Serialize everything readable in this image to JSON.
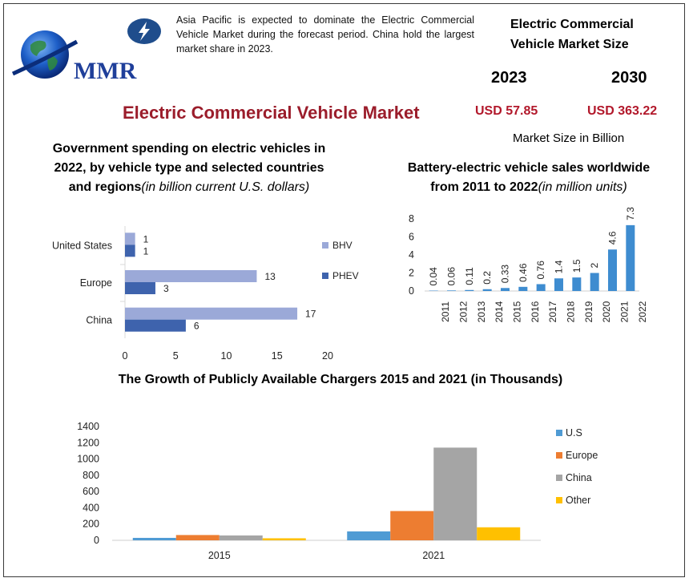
{
  "logo": {
    "text": "MMR"
  },
  "intro_text": "Asia Pacific is expected to dominate the Electric Commercial Vehicle Market during the forecast period. China hold the largest market share in 2023.",
  "market_size": {
    "heading_line1": "Electric Commercial",
    "heading_line2": "Vehicle Market Size",
    "year1": "2023",
    "year2": "2030",
    "value1": "USD 57.85",
    "value2": "USD 363.22",
    "unit_note": "Market Size in Billion"
  },
  "main_title": "Electric Commercial Vehicle Market",
  "colors": {
    "title_red": "#9b1d2b",
    "usd_red": "#b2182b",
    "bhv": "#9ba9d8",
    "phev": "#3e63ad",
    "ev_bar": "#3e8cd0",
    "us": "#4f9bd4",
    "europe": "#ed7d31",
    "china": "#a5a5a5",
    "other": "#ffc000"
  },
  "chart_data": [
    {
      "type": "bar",
      "orientation": "horizontal",
      "title_bold": "Government spending on electric vehicles in 2022, by vehicle type and selected countries and regions",
      "title_italic": "(in billion current U.S. dollars)",
      "categories": [
        "United States",
        "Europe",
        "China"
      ],
      "series": [
        {
          "name": "BHV",
          "values": [
            1,
            13,
            17
          ]
        },
        {
          "name": "PHEV",
          "values": [
            1,
            3,
            6
          ]
        }
      ],
      "xlim": [
        0,
        20
      ],
      "xticks": [
        "0",
        "5",
        "10",
        "15",
        "20"
      ],
      "legend": "right"
    },
    {
      "type": "bar",
      "title_bold": "Battery-electric vehicle sales worldwide from 2011 to 2022",
      "title_italic": "(in million units)",
      "categories": [
        "2011",
        "2012",
        "2013",
        "2014",
        "2015",
        "2016",
        "2017",
        "2018",
        "2019",
        "2020",
        "2021",
        "2022"
      ],
      "values": [
        0.04,
        0.06,
        0.11,
        0.2,
        0.33,
        0.46,
        0.76,
        1.4,
        1.5,
        2,
        4.6,
        7.3
      ],
      "value_labels": [
        "0.04",
        "0.06",
        "0.11",
        "0.2",
        "0.33",
        "0.46",
        "0.76",
        "1.4",
        "1.5",
        "2",
        "4.6",
        "7.3"
      ],
      "ylim": [
        0,
        8
      ],
      "yticks": [
        "0",
        "2",
        "4",
        "6",
        "8"
      ]
    },
    {
      "type": "bar",
      "title": "The Growth of Publicly Available Chargers 2015 and 2021 (in Thousands)",
      "categories": [
        "2015",
        "2021"
      ],
      "series": [
        {
          "name": "U.S",
          "values": [
            30,
            110
          ]
        },
        {
          "name": "Europe",
          "values": [
            65,
            360
          ]
        },
        {
          "name": "China",
          "values": [
            60,
            1140
          ]
        },
        {
          "name": "Other",
          "values": [
            25,
            160
          ]
        }
      ],
      "ylim": [
        0,
        1400
      ],
      "yticks": [
        "0",
        "200",
        "400",
        "600",
        "800",
        "1000",
        "1200",
        "1400"
      ],
      "legend": "right"
    }
  ]
}
